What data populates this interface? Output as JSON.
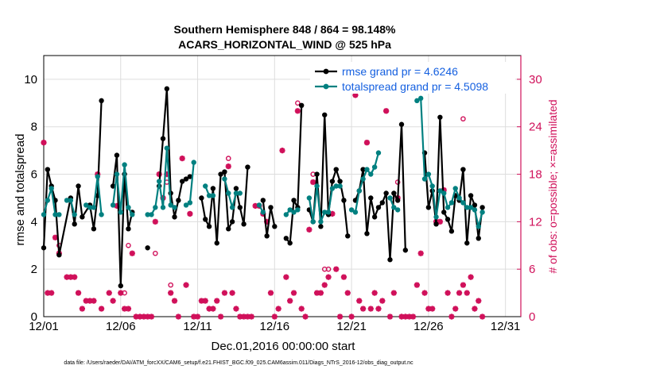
{
  "chart_data": {
    "type": "line",
    "title": "Southern Hemisphere 848 / 864 = 98.148%",
    "subtitle": "ACARS_HORIZONTAL_WIND @ 525 hPa",
    "xlabel": "Dec.01,2016 00:00:00 start",
    "ylabel": "rmse and totalspread",
    "ylabel_right": "# of obs: o=possible; ×=assimilated",
    "x_ticks": [
      "12/01",
      "12/06",
      "12/11",
      "12/16",
      "12/21",
      "12/26",
      "12/31"
    ],
    "y_ticks": [
      "0",
      "2",
      "4",
      "6",
      "8",
      "10"
    ],
    "y_ticks_right": [
      "0",
      "6",
      "12",
      "18",
      "24",
      "30"
    ],
    "xlim": [
      1,
      32
    ],
    "ylim": [
      0,
      11
    ],
    "ylim_right": [
      0,
      33
    ],
    "grid": true,
    "legend_position": "top-right",
    "footnote": "data file: /Users/raeder/DAI/ATM_forcXX/CAM6_setup/f.e21.FHIST_BGC.f09_025.CAM6assim.011/Diags_NTrS_2016-12/obs_diag_output.nc",
    "colors": {
      "rmse": "#000000",
      "spread": "#008080",
      "obs": "#d0105a",
      "legend_text": "#1560e0"
    },
    "series": [
      {
        "name": "rmse grand pr = 4.6246",
        "values": [
          [
            1,
            2.9
          ],
          [
            1.25,
            6.2
          ],
          [
            1.5,
            5.5
          ],
          [
            1.75,
            4.9
          ],
          [
            2,
            2.6
          ],
          [
            2.75,
            5.0
          ],
          [
            3,
            3.9
          ],
          [
            3.25,
            5.5
          ],
          [
            3.5,
            4.2
          ],
          [
            4,
            4.7
          ],
          [
            4.25,
            3.7
          ],
          [
            4.5,
            5.1
          ],
          [
            4.75,
            9.1
          ],
          null,
          [
            5.5,
            5.5
          ],
          [
            5.75,
            6.8
          ],
          [
            6,
            1.3
          ],
          [
            6.25,
            6.0
          ],
          [
            6.5,
            3.7
          ],
          [
            6.75,
            4.4
          ],
          null,
          [
            7.75,
            2.9
          ],
          null,
          [
            8.5,
            5.5
          ],
          [
            8.75,
            7.5
          ],
          [
            9,
            9.6
          ],
          [
            9.25,
            5.2
          ],
          [
            9.5,
            4.2
          ],
          [
            9.75,
            4.9
          ],
          [
            10,
            5.7
          ],
          [
            10.25,
            5.8
          ],
          [
            10.5,
            5.9
          ],
          null,
          [
            11.25,
            5.0
          ],
          [
            11.5,
            4.1
          ],
          [
            11.75,
            3.8
          ],
          [
            12,
            5.4
          ],
          [
            12.25,
            3.1
          ],
          [
            12.5,
            6.0
          ],
          [
            12.75,
            6.1
          ],
          [
            13,
            3.7
          ],
          [
            13.25,
            4.0
          ],
          [
            13.5,
            5.4
          ],
          [
            13.75,
            4.6
          ],
          [
            14,
            3.9
          ],
          [
            14.25,
            6.3
          ],
          null,
          [
            15.25,
            4.9
          ],
          [
            15.5,
            3.4
          ],
          [
            15.75,
            4.6
          ],
          [
            16,
            3.8
          ],
          null,
          [
            16.75,
            3.3
          ],
          [
            17,
            3.1
          ],
          [
            17.25,
            4.9
          ],
          [
            17.5,
            4.6
          ],
          [
            17.75,
            8.9
          ],
          null,
          [
            18.25,
            4.5
          ],
          [
            18.5,
            4.0
          ],
          [
            18.75,
            6.0
          ],
          [
            19,
            3.8
          ],
          [
            19.25,
            8.5
          ],
          [
            19.5,
            4.3
          ],
          [
            19.75,
            5.7
          ],
          [
            20,
            6.2
          ],
          [
            20.25,
            5.7
          ],
          [
            20.5,
            4.9
          ],
          [
            20.75,
            3.4
          ],
          null,
          [
            21.25,
            4.9
          ],
          [
            21.5,
            5.3
          ],
          [
            21.75,
            6.2
          ],
          [
            22,
            3.5
          ],
          [
            22.25,
            5.0
          ],
          [
            22.5,
            4.2
          ],
          [
            22.75,
            4.6
          ],
          [
            23,
            4.8
          ],
          [
            23.25,
            5.2
          ],
          [
            23.5,
            2.4
          ],
          [
            23.75,
            5.2
          ],
          [
            24,
            4.9
          ],
          [
            24.25,
            8.1
          ],
          [
            24.5,
            2.8
          ],
          null,
          [
            25.75,
            6.9
          ],
          [
            26,
            4.6
          ],
          [
            26.25,
            5.3
          ],
          [
            26.5,
            3.9
          ],
          [
            26.75,
            8.4
          ],
          [
            27,
            4.4
          ],
          [
            27.25,
            4.1
          ],
          [
            27.5,
            3.6
          ],
          [
            27.75,
            5.1
          ],
          [
            28,
            4.9
          ],
          [
            28.25,
            6.2
          ],
          [
            28.5,
            3.1
          ],
          [
            28.75,
            5.1
          ],
          [
            29,
            4.7
          ],
          [
            29.25,
            3.3
          ],
          [
            29.5,
            4.6
          ]
        ]
      },
      {
        "name": "totalspread grand pr = 4.5098",
        "values": [
          [
            1,
            4.3
          ],
          [
            1.25,
            4.9
          ],
          [
            1.5,
            5.4
          ],
          [
            1.75,
            4.3
          ],
          [
            2,
            4.3
          ],
          null,
          [
            2.5,
            4.9
          ],
          [
            2.75,
            4.9
          ],
          [
            3,
            4.3
          ],
          null,
          [
            3.75,
            4.7
          ],
          [
            4,
            4.6
          ],
          [
            4.25,
            4.6
          ],
          [
            4.5,
            5.9
          ],
          [
            4.75,
            4.3
          ],
          null,
          [
            5.5,
            4.7
          ],
          [
            5.75,
            6.0
          ],
          [
            6,
            4.4
          ],
          [
            6.25,
            6.4
          ],
          [
            6.5,
            4.6
          ],
          [
            6.75,
            4.3
          ],
          null,
          [
            7.75,
            4.3
          ],
          [
            8,
            4.3
          ],
          [
            8.25,
            4.6
          ],
          [
            8.5,
            5.7
          ],
          [
            8.75,
            4.6
          ],
          [
            9,
            7.1
          ],
          [
            9.25,
            4.7
          ],
          [
            9.5,
            4.6
          ],
          null,
          [
            10.25,
            4.7
          ],
          [
            10.5,
            4.8
          ],
          [
            10.75,
            6.5
          ],
          null,
          [
            11.5,
            5.5
          ],
          [
            11.75,
            5.1
          ],
          [
            12,
            5.1
          ],
          null,
          [
            12.75,
            5.8
          ],
          [
            13,
            5.2
          ],
          [
            13.25,
            4.6
          ],
          [
            13.5,
            5.2
          ],
          [
            13.75,
            5.2
          ],
          null,
          [
            15,
            4.7
          ],
          [
            15.25,
            4.4
          ],
          null,
          [
            16.75,
            4.3
          ],
          [
            17,
            4.5
          ],
          [
            17.25,
            4.4
          ],
          [
            17.5,
            4.5
          ],
          null,
          [
            18.25,
            5.0
          ],
          [
            18.5,
            4.0
          ],
          [
            18.75,
            5.5
          ],
          [
            19,
            4.0
          ],
          [
            19.25,
            4.4
          ],
          [
            19.5,
            4.4
          ],
          [
            19.75,
            5.4
          ],
          [
            20,
            5.5
          ],
          [
            20.25,
            5.5
          ],
          null,
          [
            21,
            4.5
          ],
          [
            21.25,
            4.4
          ],
          [
            21.5,
            5.3
          ],
          [
            21.75,
            5.8
          ],
          [
            22,
            6.2
          ],
          [
            22.25,
            6.0
          ],
          [
            22.5,
            6.3
          ],
          [
            22.75,
            6.9
          ],
          null,
          [
            23.5,
            5.0
          ],
          [
            23.75,
            4.6
          ],
          [
            24,
            4.5
          ],
          null,
          [
            25.25,
            9.1
          ],
          [
            25.5,
            9.2
          ],
          [
            25.75,
            5.8
          ],
          [
            26,
            6.0
          ],
          [
            26.25,
            5.5
          ],
          [
            26.5,
            4.2
          ],
          [
            26.75,
            5.3
          ],
          [
            27,
            5.2
          ],
          [
            27.25,
            4.6
          ],
          [
            27.5,
            4.8
          ],
          [
            27.75,
            5.4
          ],
          [
            28,
            5.0
          ],
          [
            28.25,
            4.8
          ],
          [
            28.5,
            4.6
          ],
          [
            28.75,
            4.6
          ],
          [
            29,
            4.5
          ],
          [
            29.25,
            3.8
          ],
          [
            29.5,
            4.4
          ]
        ]
      }
    ],
    "obs_assimilated": [
      [
        1,
        22
      ],
      [
        1.25,
        3
      ],
      [
        1.5,
        3
      ],
      [
        1.75,
        10
      ],
      [
        2,
        8
      ],
      [
        2.5,
        5
      ],
      [
        2.75,
        5
      ],
      [
        3,
        5
      ],
      [
        3.25,
        3
      ],
      [
        3.5,
        1
      ],
      [
        3.75,
        2
      ],
      [
        4,
        2
      ],
      [
        4.25,
        2
      ],
      [
        4.5,
        18
      ],
      [
        4.75,
        1
      ],
      [
        5.25,
        3
      ],
      [
        5.5,
        2
      ],
      [
        5.75,
        14
      ],
      [
        6,
        3
      ],
      [
        6.25,
        1
      ],
      [
        6.5,
        1
      ],
      [
        6.75,
        8
      ],
      [
        7,
        0
      ],
      [
        7.25,
        0
      ],
      [
        7.5,
        0
      ],
      [
        7.75,
        0
      ],
      [
        8,
        0
      ],
      [
        8.25,
        12
      ],
      [
        8.5,
        18
      ],
      [
        8.75,
        15
      ],
      [
        9,
        18
      ],
      [
        9.25,
        3
      ],
      [
        9.5,
        2
      ],
      [
        9.75,
        0
      ],
      [
        10,
        20
      ],
      [
        10.25,
        4
      ],
      [
        10.5,
        13
      ],
      [
        10.75,
        0
      ],
      [
        11,
        0
      ],
      [
        11.25,
        2
      ],
      [
        11.5,
        2
      ],
      [
        11.75,
        1
      ],
      [
        12,
        1
      ],
      [
        12.25,
        2
      ],
      [
        12.5,
        0
      ],
      [
        12.75,
        3
      ],
      [
        13,
        19
      ],
      [
        13.25,
        3
      ],
      [
        13.5,
        1
      ],
      [
        13.75,
        0
      ],
      [
        14,
        0
      ],
      [
        14.25,
        0
      ],
      [
        14.5,
        0
      ],
      [
        14.75,
        14
      ],
      [
        15,
        14
      ],
      [
        15.25,
        13
      ],
      [
        15.5,
        12
      ],
      [
        15.75,
        3
      ],
      [
        16,
        0
      ],
      [
        16.25,
        1
      ],
      [
        16.5,
        21
      ],
      [
        16.75,
        5
      ],
      [
        17,
        2
      ],
      [
        17.25,
        3
      ],
      [
        17.5,
        26
      ],
      [
        17.75,
        1
      ],
      [
        18,
        0
      ],
      [
        18.25,
        11
      ],
      [
        18.5,
        17
      ],
      [
        18.75,
        3
      ],
      [
        19,
        3
      ],
      [
        19.25,
        4
      ],
      [
        19.5,
        5
      ],
      [
        19.75,
        13
      ],
      [
        20,
        6
      ],
      [
        20.25,
        0
      ],
      [
        20.5,
        5
      ],
      [
        20.75,
        3
      ],
      [
        21,
        0
      ],
      [
        21.25,
        28
      ],
      [
        21.5,
        2
      ],
      [
        21.75,
        1
      ],
      [
        22,
        22
      ],
      [
        22.25,
        1
      ],
      [
        22.5,
        3
      ],
      [
        22.75,
        1
      ],
      [
        23,
        2
      ],
      [
        23.25,
        26
      ],
      [
        23.5,
        0
      ],
      [
        23.75,
        3
      ],
      [
        24,
        15
      ],
      [
        24.25,
        0
      ],
      [
        24.5,
        0
      ],
      [
        24.75,
        0
      ],
      [
        25,
        0
      ],
      [
        25.25,
        4
      ],
      [
        25.5,
        8
      ],
      [
        25.75,
        3
      ],
      [
        26,
        1
      ],
      [
        26.25,
        1
      ],
      [
        26.5,
        12
      ],
      [
        26.75,
        12
      ],
      [
        27,
        16
      ],
      [
        27.25,
        3
      ],
      [
        27.5,
        0
      ],
      [
        27.75,
        1
      ],
      [
        28,
        3
      ],
      [
        28.25,
        4
      ],
      [
        28.5,
        3
      ],
      [
        28.75,
        5
      ],
      [
        29,
        1
      ],
      [
        29.25,
        2
      ],
      [
        29.5,
        0
      ]
    ],
    "obs_possible": [
      [
        1,
        22
      ],
      [
        2,
        9
      ],
      [
        3.25,
        3
      ],
      [
        4.75,
        1
      ],
      [
        6.25,
        3
      ],
      [
        6.5,
        9
      ],
      [
        8.25,
        8
      ],
      [
        9,
        17
      ],
      [
        9.25,
        4
      ],
      [
        10.5,
        13
      ],
      [
        13,
        20
      ],
      [
        17.5,
        27
      ],
      [
        18.5,
        18
      ],
      [
        19.25,
        6
      ],
      [
        19.5,
        6
      ],
      [
        21.25,
        28
      ],
      [
        22,
        22
      ],
      [
        23.25,
        26
      ],
      [
        24,
        17
      ],
      [
        26.5,
        12
      ],
      [
        28.25,
        25
      ]
    ]
  }
}
